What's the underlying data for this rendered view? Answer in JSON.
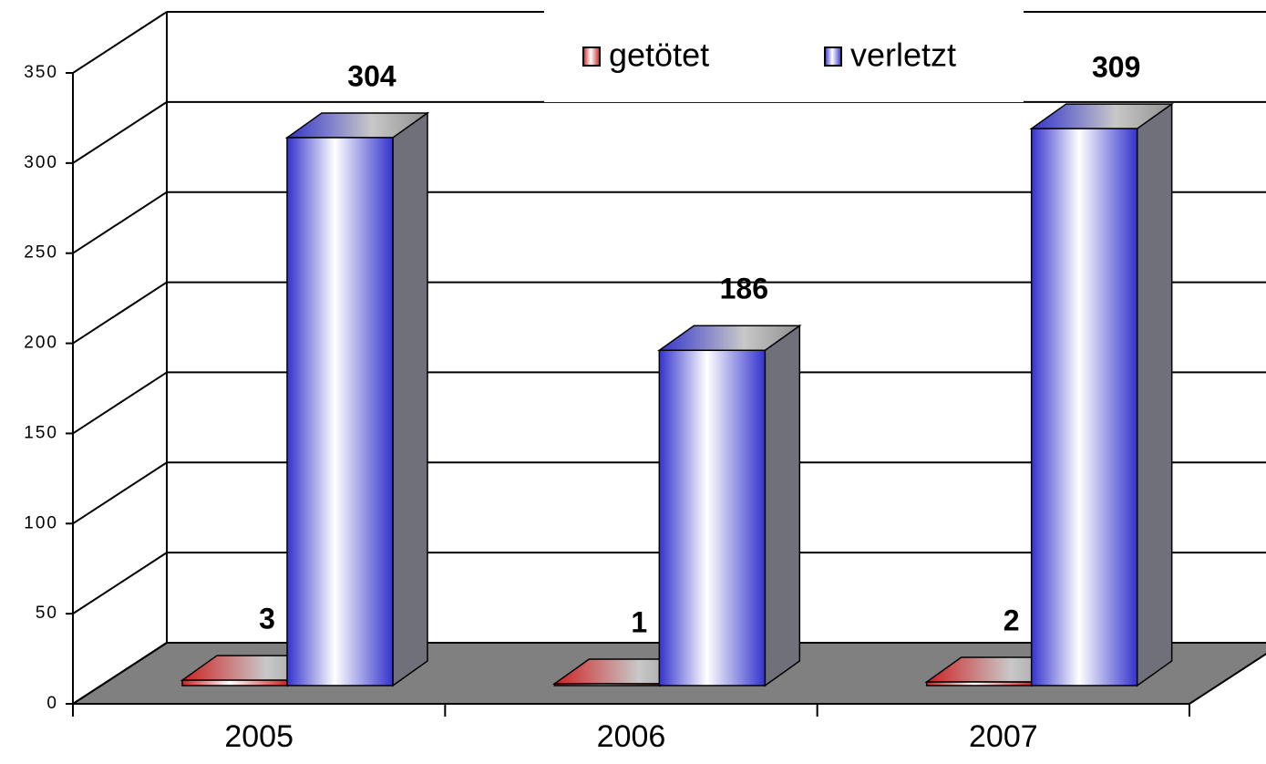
{
  "chart_data": {
    "type": "bar3d",
    "categories": [
      "2005",
      "2006",
      "2007"
    ],
    "series": [
      {
        "name": "getötet",
        "color": "#cc2222",
        "values": [
          3,
          1,
          2
        ]
      },
      {
        "name": "verletzt",
        "color": "#3333cc",
        "values": [
          304,
          186,
          309
        ]
      }
    ],
    "ylim": [
      0,
      350
    ],
    "yticks": [
      0,
      50,
      100,
      150,
      200,
      250,
      300,
      350
    ],
    "grid": true,
    "legend": "top"
  }
}
